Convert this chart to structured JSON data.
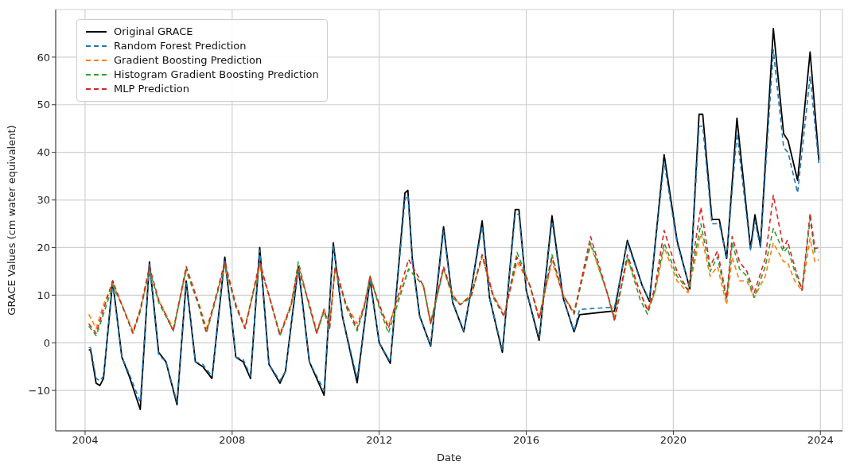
{
  "chart_data": {
    "type": "line",
    "xlabel": "Date",
    "ylabel": "GRACE Values (cm water equivalent)",
    "xlim": [
      2003.2,
      2024.6
    ],
    "xticks": [
      2004,
      2008,
      2012,
      2016,
      2020,
      2024
    ],
    "ylim": [
      -18.5,
      70
    ],
    "yticks": [
      -10,
      0,
      10,
      20,
      30,
      40,
      50,
      60
    ],
    "grid": true,
    "legend": "top left",
    "series": [
      {
        "name": "Original GRACE",
        "color": "#000000",
        "line_style": "solid",
        "x": [
          2004.1,
          2004.15,
          2004.3,
          2004.4,
          2004.5,
          2004.75,
          2005.0,
          2005.2,
          2005.5,
          2005.75,
          2006.0,
          2006.2,
          2006.5,
          2006.75,
          2007.0,
          2007.2,
          2007.45,
          2007.8,
          2008.1,
          2008.3,
          2008.5,
          2008.75,
          2009.0,
          2009.3,
          2009.45,
          2009.8,
          2010.1,
          2010.5,
          2010.75,
          2011.0,
          2011.4,
          2011.75,
          2012.0,
          2012.3,
          2012.7,
          2012.78,
          2012.9,
          2013.1,
          2013.4,
          2013.75,
          2014.0,
          2014.3,
          2014.5,
          2014.8,
          2015.0,
          2015.35,
          2015.7,
          2015.8,
          2016.0,
          2016.35,
          2016.7,
          2017.0,
          2017.3,
          2017.45,
          2018.4,
          2018.75,
          2019.15,
          2019.35,
          2019.75,
          2020.1,
          2020.45,
          2020.7,
          2020.8,
          2021.05,
          2021.25,
          2021.45,
          2021.73,
          2022.1,
          2022.22,
          2022.37,
          2022.72,
          2023.0,
          2023.12,
          2023.38,
          2023.72,
          2023.96
        ],
        "values": [
          -1.5,
          -1.5,
          -8.5,
          -9,
          -7.5,
          13,
          -3,
          -7,
          -14,
          17,
          -2,
          -4,
          -13,
          13,
          -4,
          -5,
          -7.5,
          18,
          -3,
          -4,
          -7.5,
          20,
          -4.5,
          -8.5,
          -6,
          16,
          -4,
          -11,
          21,
          5.5,
          -8.4,
          13.3,
          0,
          -4.3,
          31.5,
          32,
          17.7,
          5.6,
          -0.7,
          24.4,
          8.4,
          2.3,
          11,
          25.6,
          9.5,
          -2,
          28,
          28,
          11,
          0.5,
          26.7,
          9.5,
          2.3,
          5.9,
          6.7,
          21.5,
          12.1,
          8.7,
          39.5,
          21.5,
          11.3,
          48,
          48,
          25.9,
          25.9,
          17.7,
          47.2,
          19.8,
          26.9,
          20.3,
          66,
          43.9,
          42.5,
          34.1,
          61.1,
          38.4
        ]
      },
      {
        "name": "Random Forest Prediction",
        "color": "#1f77b4",
        "line_style": "dashed",
        "x": [
          2004.1,
          2004.15,
          2004.3,
          2004.4,
          2004.5,
          2004.75,
          2005.0,
          2005.2,
          2005.5,
          2005.75,
          2006.0,
          2006.2,
          2006.5,
          2006.75,
          2007.0,
          2007.2,
          2007.45,
          2007.8,
          2008.1,
          2008.3,
          2008.5,
          2008.75,
          2009.0,
          2009.3,
          2009.45,
          2009.8,
          2010.1,
          2010.5,
          2010.75,
          2011.0,
          2011.4,
          2011.75,
          2012.0,
          2012.3,
          2012.7,
          2012.78,
          2012.9,
          2013.1,
          2013.4,
          2013.75,
          2014.0,
          2014.3,
          2014.5,
          2014.8,
          2015.0,
          2015.35,
          2015.7,
          2015.8,
          2016.0,
          2016.35,
          2016.7,
          2017.0,
          2017.3,
          2017.45,
          2018.4,
          2018.75,
          2019.15,
          2019.35,
          2019.75,
          2020.1,
          2020.45,
          2020.7,
          2020.8,
          2021.05,
          2021.25,
          2021.45,
          2021.73,
          2022.1,
          2022.22,
          2022.37,
          2022.72,
          2023.0,
          2023.12,
          2023.38,
          2023.72,
          2023.96
        ],
        "values": [
          -1,
          -1,
          -7.5,
          -8,
          -7,
          12.5,
          -3,
          -6.5,
          -12.5,
          16.5,
          -2.5,
          -4,
          -12.5,
          12.5,
          -4,
          -4.5,
          -7,
          17.5,
          -3,
          -3.5,
          -7,
          19.5,
          -4.5,
          -8,
          -6,
          15.5,
          -4,
          -10,
          20.5,
          5.5,
          -7.5,
          13,
          0,
          -4,
          30,
          31,
          17,
          5.5,
          -0.5,
          23.5,
          8.5,
          2.5,
          11,
          24.5,
          9.5,
          -1.5,
          27,
          27,
          11,
          1,
          25.5,
          9.5,
          2.5,
          7,
          7.5,
          21,
          12,
          9,
          38,
          21,
          11.5,
          45.5,
          45.5,
          25,
          25,
          18,
          44,
          19.5,
          25.5,
          20,
          61.5,
          41,
          40,
          31.5,
          56,
          37.5
        ]
      },
      {
        "name": "Gradient Boosting Prediction",
        "color": "#ff7f0e",
        "line_style": "dashed",
        "x": [
          2004.1,
          2004.3,
          2004.5,
          2004.75,
          2005.0,
          2005.3,
          2005.5,
          2005.75,
          2006.0,
          2006.4,
          2006.75,
          2007.1,
          2007.3,
          2007.5,
          2007.8,
          2008.1,
          2008.35,
          2008.75,
          2009.0,
          2009.3,
          2009.6,
          2009.8,
          2010.1,
          2010.3,
          2010.5,
          2010.65,
          2010.8,
          2011.1,
          2011.4,
          2011.6,
          2011.75,
          2012.0,
          2012.25,
          2012.8,
          2013.2,
          2013.4,
          2013.75,
          2014.0,
          2014.2,
          2014.5,
          2014.8,
          2015.1,
          2015.4,
          2015.75,
          2016.1,
          2016.35,
          2016.7,
          2017.0,
          2017.3,
          2017.75,
          2018.2,
          2018.4,
          2018.75,
          2019.1,
          2019.3,
          2019.5,
          2019.75,
          2020.1,
          2020.4,
          2020.75,
          2021.0,
          2021.2,
          2021.45,
          2021.6,
          2021.8,
          2022.0,
          2022.2,
          2022.5,
          2022.72,
          2023.0,
          2023.1,
          2023.3,
          2023.5,
          2023.72,
          2023.85,
          2023.96
        ],
        "values": [
          6,
          3,
          8,
          12.5,
          8,
          2.5,
          7,
          15,
          9,
          3,
          15,
          8,
          3,
          8,
          16,
          8,
          3.5,
          16,
          10,
          2,
          8,
          15.5,
          8,
          2.5,
          7,
          4,
          15.5,
          8,
          4,
          8,
          13.5,
          8,
          3.5,
          15.5,
          12,
          4.5,
          15.5,
          10,
          8,
          10,
          18,
          10,
          6,
          17,
          12,
          5.5,
          17,
          10,
          6.5,
          20.5,
          10.5,
          5.5,
          17.5,
          10.5,
          7,
          10.5,
          20,
          13,
          10.5,
          23,
          14,
          16,
          8,
          18,
          13,
          13,
          9.5,
          14,
          21,
          17,
          17,
          13,
          11,
          22,
          17,
          17.5
        ]
      },
      {
        "name": "Histogram Gradient Boosting Prediction",
        "color": "#2ca02c",
        "line_style": "dashed",
        "x": [
          2004.1,
          2004.3,
          2004.5,
          2004.75,
          2005.0,
          2005.3,
          2005.5,
          2005.75,
          2006.0,
          2006.4,
          2006.75,
          2007.1,
          2007.3,
          2007.5,
          2007.8,
          2008.1,
          2008.35,
          2008.75,
          2009.0,
          2009.3,
          2009.6,
          2009.8,
          2010.1,
          2010.3,
          2010.5,
          2010.65,
          2010.8,
          2011.1,
          2011.4,
          2011.6,
          2011.75,
          2012.0,
          2012.25,
          2012.8,
          2013.2,
          2013.4,
          2013.75,
          2014.0,
          2014.2,
          2014.5,
          2014.8,
          2015.1,
          2015.4,
          2015.75,
          2016.1,
          2016.35,
          2016.7,
          2017.0,
          2017.3,
          2017.75,
          2018.2,
          2018.4,
          2018.75,
          2019.1,
          2019.3,
          2019.5,
          2019.75,
          2020.1,
          2020.4,
          2020.75,
          2021.0,
          2021.2,
          2021.45,
          2021.6,
          2021.8,
          2022.0,
          2022.2,
          2022.5,
          2022.72,
          2023.0,
          2023.1,
          2023.3,
          2023.5,
          2023.72,
          2023.85,
          2023.96
        ],
        "values": [
          3.5,
          1.5,
          6,
          12,
          8,
          2,
          6.5,
          15.5,
          8.5,
          2.5,
          15.5,
          7.5,
          2,
          7.5,
          16.5,
          7.5,
          3,
          16.5,
          10,
          1.5,
          7.5,
          17,
          7.5,
          2,
          6.5,
          3,
          16,
          7.5,
          2.5,
          7.5,
          14,
          7.5,
          2,
          15.5,
          12,
          4,
          15.5,
          9.5,
          8,
          9.5,
          18.5,
          9.5,
          5.5,
          19,
          12,
          5,
          18.5,
          10,
          6,
          21,
          10.5,
          4.5,
          18,
          9,
          6,
          11,
          21,
          14,
          11,
          25,
          15,
          18,
          9,
          21,
          15.5,
          14,
          9.5,
          16,
          24,
          19,
          20,
          15,
          11,
          26,
          19,
          19
        ]
      },
      {
        "name": "MLP Prediction",
        "color": "#d62728",
        "line_style": "dashed",
        "x": [
          2004.1,
          2004.3,
          2004.5,
          2004.75,
          2005.0,
          2005.3,
          2005.5,
          2005.75,
          2006.0,
          2006.4,
          2006.75,
          2007.1,
          2007.3,
          2007.5,
          2007.8,
          2008.1,
          2008.35,
          2008.75,
          2009.0,
          2009.3,
          2009.6,
          2009.8,
          2010.1,
          2010.3,
          2010.5,
          2010.65,
          2010.8,
          2011.1,
          2011.4,
          2011.6,
          2011.75,
          2012.0,
          2012.25,
          2012.8,
          2013.2,
          2013.4,
          2013.75,
          2014.0,
          2014.2,
          2014.5,
          2014.8,
          2015.1,
          2015.4,
          2015.75,
          2016.1,
          2016.35,
          2016.7,
          2017.0,
          2017.3,
          2017.75,
          2018.2,
          2018.4,
          2018.75,
          2019.1,
          2019.3,
          2019.5,
          2019.75,
          2020.1,
          2020.4,
          2020.75,
          2021.0,
          2021.2,
          2021.45,
          2021.6,
          2021.8,
          2022.0,
          2022.2,
          2022.5,
          2022.72,
          2023.0,
          2023.1,
          2023.3,
          2023.5,
          2023.72,
          2023.85,
          2023.96
        ],
        "values": [
          4,
          2,
          7,
          13,
          8,
          2,
          7,
          16,
          9,
          2.5,
          16,
          8,
          2.3,
          8,
          17,
          8,
          3,
          17,
          10,
          1.5,
          8,
          16,
          8,
          2,
          7,
          3,
          16,
          8,
          3,
          8,
          14,
          8,
          3,
          17.5,
          12,
          4,
          16,
          10,
          8,
          10,
          18.5,
          10,
          5.5,
          18,
          12,
          5,
          18,
          10,
          6.2,
          22.3,
          10.5,
          4.8,
          18.5,
          10.5,
          6.7,
          11.6,
          23.6,
          15,
          11.1,
          28.5,
          16,
          19.3,
          9.5,
          22.3,
          17,
          15,
          10.5,
          17.7,
          31,
          19.8,
          21.5,
          16,
          11.1,
          27.2,
          19.8,
          20
        ]
      }
    ]
  }
}
